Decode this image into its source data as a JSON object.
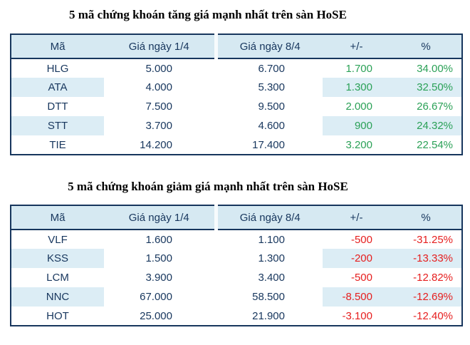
{
  "colors": {
    "page_bg": "#ffffff",
    "header_bg": "#d6e9f2",
    "stripe_bg": "#dcedf5",
    "border": "#17365d",
    "text_navy": "#17365d",
    "gain_green": "#2ba157",
    "loss_red": "#e61e1e",
    "title_black": "#000000"
  },
  "tables": [
    {
      "title": "5 mã chứng khoán tăng giá mạnh nhất trên sàn HoSE",
      "trend": "up",
      "columns": [
        "Mã",
        "Giá ngày 1/4",
        "Giá ngày 8/4",
        "+/-",
        "%"
      ],
      "rows": [
        {
          "code": "HLG",
          "price_apr1": "5.000",
          "price_apr8": "6.700",
          "change": "1.700",
          "percent": "34.00%"
        },
        {
          "code": "ATA",
          "price_apr1": "4.000",
          "price_apr8": "5.300",
          "change": "1.300",
          "percent": "32.50%"
        },
        {
          "code": "DTT",
          "price_apr1": "7.500",
          "price_apr8": "9.500",
          "change": "2.000",
          "percent": "26.67%"
        },
        {
          "code": "STT",
          "price_apr1": "3.700",
          "price_apr8": "4.600",
          "change": "900",
          "percent": "24.32%"
        },
        {
          "code": "TIE",
          "price_apr1": "14.200",
          "price_apr8": "17.400",
          "change": "3.200",
          "percent": "22.54%"
        }
      ]
    },
    {
      "title": "5 mã chứng khoán giảm giá mạnh nhất trên sàn HoSE",
      "trend": "down",
      "columns": [
        "Mã",
        "Giá ngày 1/4",
        "Giá ngày 8/4",
        "+/-",
        "%"
      ],
      "rows": [
        {
          "code": "VLF",
          "price_apr1": "1.600",
          "price_apr8": "1.100",
          "change": "-500",
          "percent": "-31.25%"
        },
        {
          "code": "KSS",
          "price_apr1": "1.500",
          "price_apr8": "1.300",
          "change": "-200",
          "percent": "-13.33%"
        },
        {
          "code": "LCM",
          "price_apr1": "3.900",
          "price_apr8": "3.400",
          "change": "-500",
          "percent": "-12.82%"
        },
        {
          "code": "NNC",
          "price_apr1": "67.000",
          "price_apr8": "58.500",
          "change": "-8.500",
          "percent": "-12.69%"
        },
        {
          "code": "HOT",
          "price_apr1": "25.000",
          "price_apr8": "21.900",
          "change": "-3.100",
          "percent": "-12.40%"
        }
      ]
    }
  ]
}
